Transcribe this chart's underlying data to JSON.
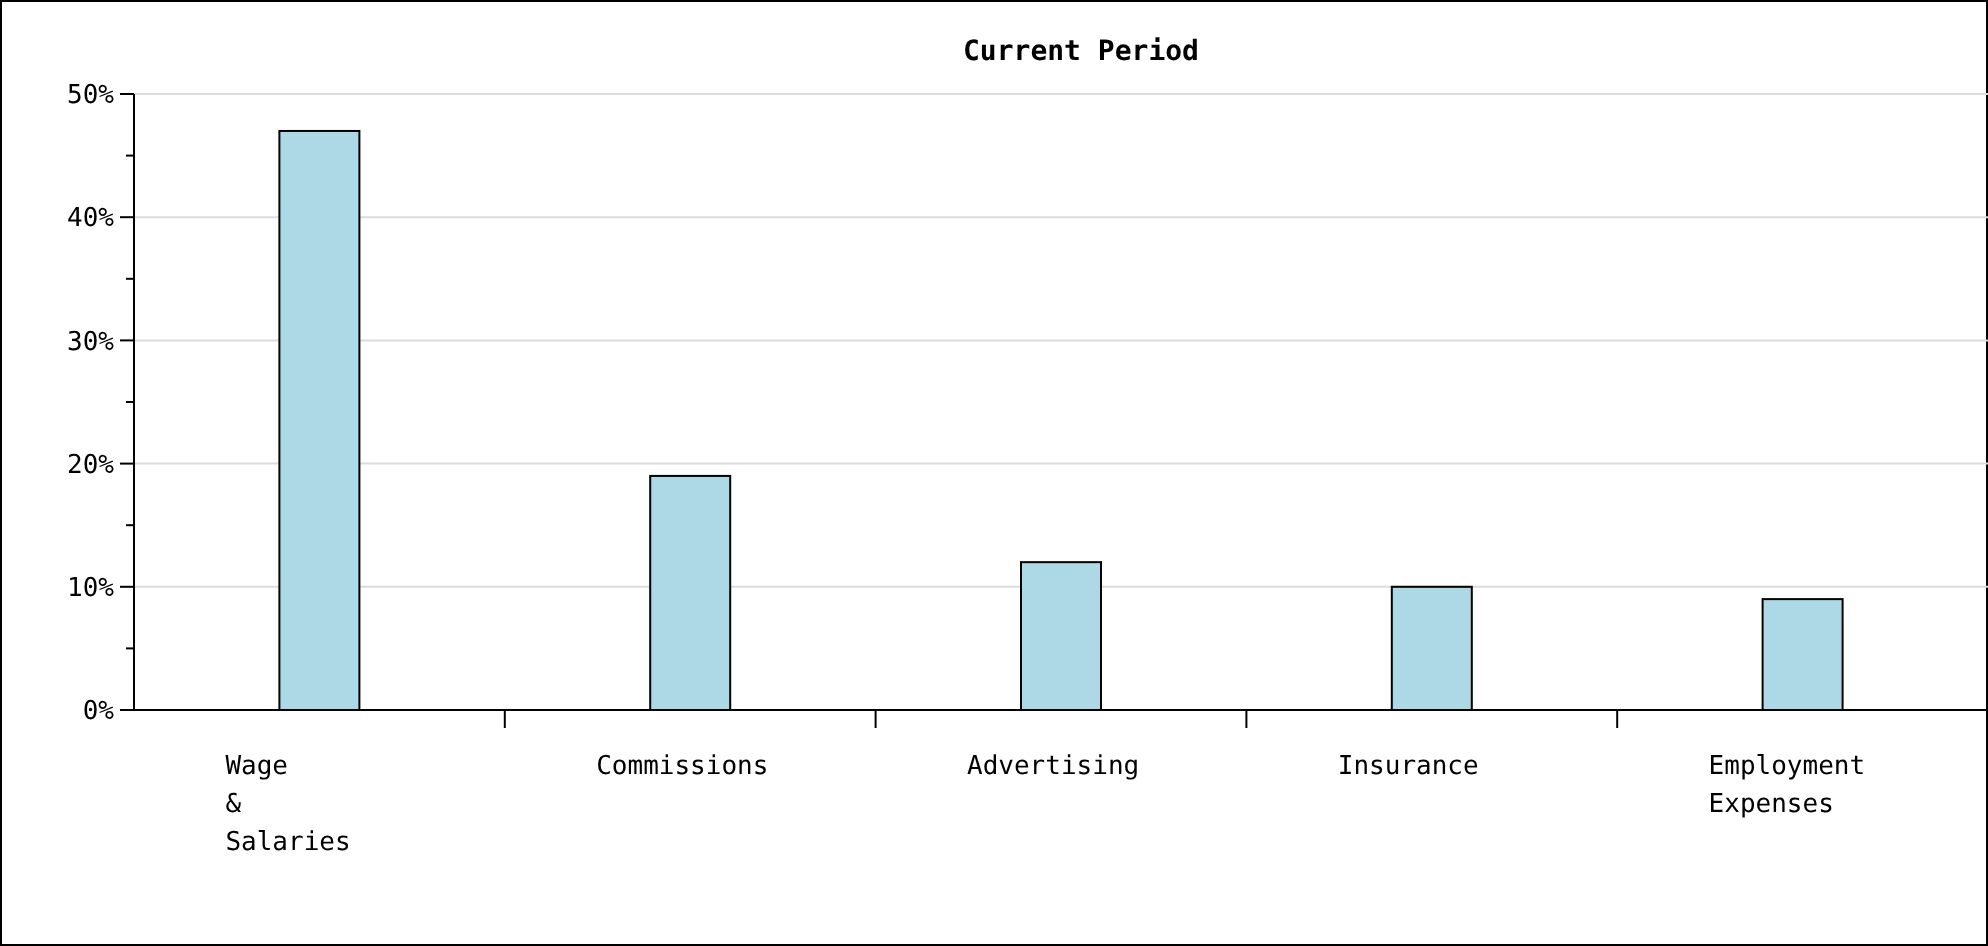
{
  "chart_data": {
    "type": "bar",
    "title": "Current Period",
    "categories": [
      "Wage & Salaries",
      "Commissions",
      "Advertising",
      "Insurance",
      "Employment Expenses"
    ],
    "values": [
      47,
      19,
      12,
      10,
      9
    ],
    "color": "#add8e6",
    "ylim": [
      0,
      50
    ],
    "yticks": [
      {
        "value": 0,
        "label": "0%"
      },
      {
        "value": 5,
        "label": null
      },
      {
        "value": 10,
        "label": "10%"
      },
      {
        "value": 15,
        "label": null
      },
      {
        "value": 20,
        "label": "20%"
      },
      {
        "value": 25,
        "label": null
      },
      {
        "value": 30,
        "label": "30%"
      },
      {
        "value": 35,
        "label": null
      },
      {
        "value": 40,
        "label": "40%"
      },
      {
        "value": 45,
        "label": null
      },
      {
        "value": 50,
        "label": "50%"
      }
    ],
    "grid": "y"
  }
}
